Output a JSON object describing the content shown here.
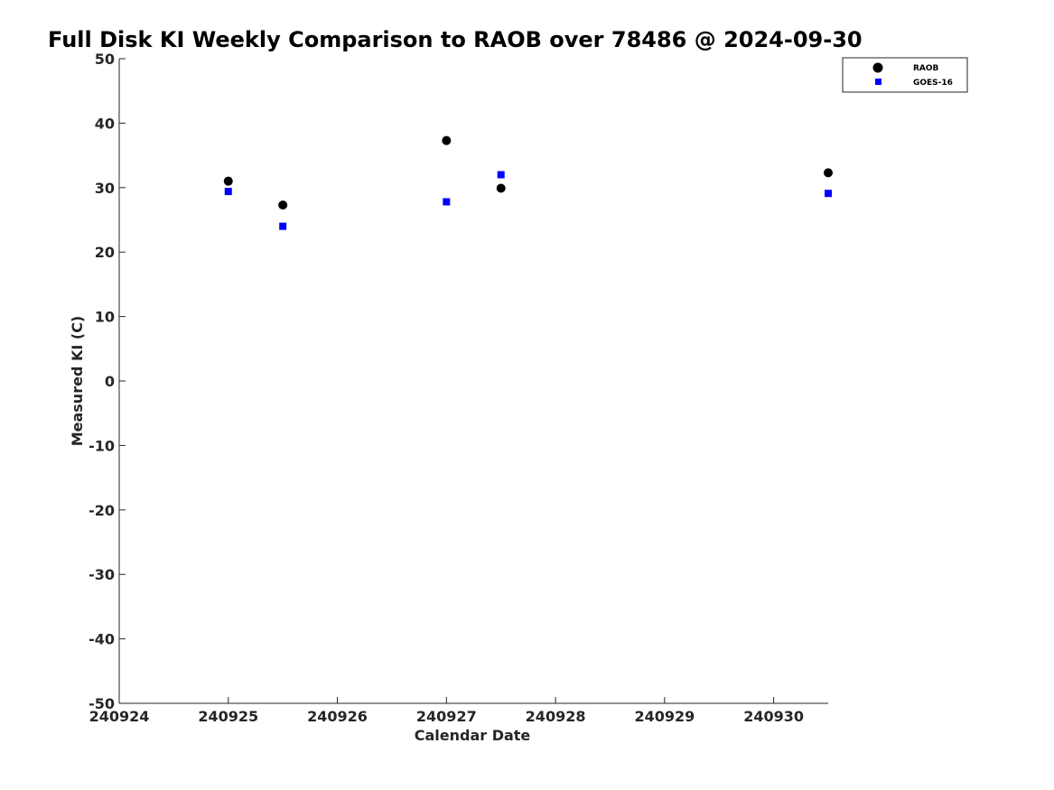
{
  "chart_data": {
    "type": "scatter",
    "title": "Full Disk KI Weekly Comparison to RAOB over 78486 @ 2024-09-30",
    "xlabel": "Calendar Date",
    "ylabel": "Measured KI (C)",
    "xlim": [
      240924,
      240930.5
    ],
    "ylim": [
      -50,
      50
    ],
    "xticks": [
      240924,
      240925,
      240926,
      240927,
      240928,
      240929,
      240930
    ],
    "xtick_labels": [
      "240924",
      "240925",
      "240926",
      "240927",
      "240928",
      "240929",
      "240930"
    ],
    "yticks": [
      50,
      40,
      30,
      20,
      10,
      0,
      -10,
      -20,
      -30,
      -40,
      -50
    ],
    "ytick_labels": [
      "50",
      "40",
      "30",
      "20",
      "10",
      "0",
      "-10",
      "-20",
      "-30",
      "-40",
      "-50"
    ],
    "grid": false,
    "legend_position": "top-right",
    "series": [
      {
        "name": "RAOB",
        "marker": "circle",
        "color": "#000000",
        "points": [
          {
            "x": 240925.0,
            "y": 31.0
          },
          {
            "x": 240925.5,
            "y": 27.3
          },
          {
            "x": 240927.0,
            "y": 37.3
          },
          {
            "x": 240927.5,
            "y": 29.9
          },
          {
            "x": 240930.5,
            "y": 32.3
          }
        ]
      },
      {
        "name": "GOES-16",
        "marker": "square",
        "color": "#0000ff",
        "points": [
          {
            "x": 240925.0,
            "y": 29.4
          },
          {
            "x": 240925.5,
            "y": 24.0
          },
          {
            "x": 240927.0,
            "y": 27.8
          },
          {
            "x": 240927.5,
            "y": 32.0
          },
          {
            "x": 240930.5,
            "y": 29.1
          }
        ]
      }
    ]
  }
}
